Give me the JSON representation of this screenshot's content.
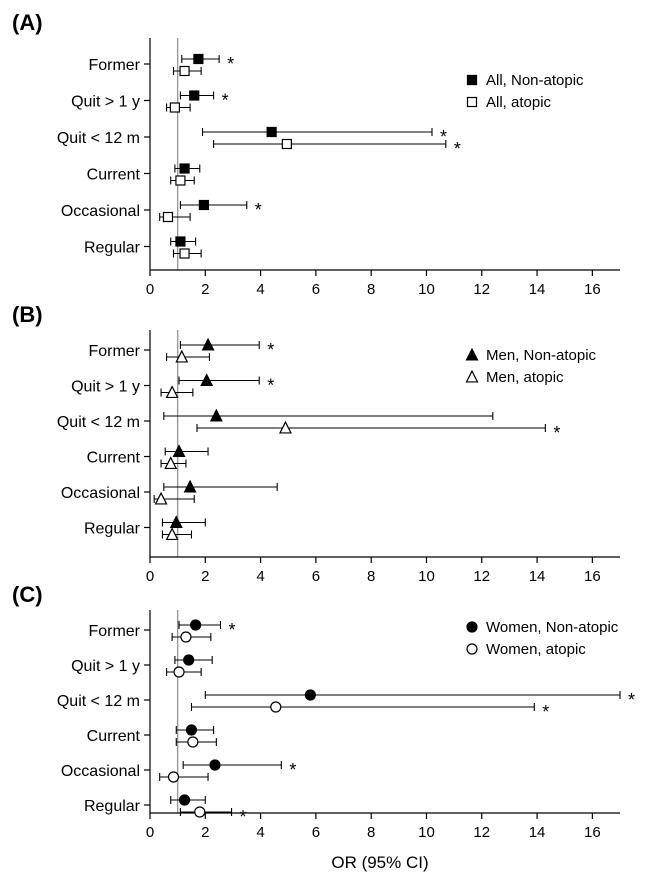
{
  "chart_data": [
    {
      "type": "forest",
      "panel": "(A)",
      "categories": [
        "Former",
        "Quit > 1 y",
        "Quit < 12 m",
        "Current",
        "Occasional",
        "Regular"
      ],
      "xlim": [
        0,
        17
      ],
      "xticks": [
        "0",
        "2",
        "4",
        "6",
        "8",
        "10",
        "12",
        "14",
        "16"
      ],
      "legend_position": "top-right",
      "series": [
        {
          "name": "All, Non-atopic",
          "marker": "square",
          "filled": true,
          "or": [
            1.75,
            1.6,
            4.4,
            1.25,
            1.95,
            1.1
          ],
          "lo": [
            1.15,
            1.1,
            1.9,
            0.9,
            1.1,
            0.75
          ],
          "hi": [
            2.5,
            2.3,
            10.2,
            1.8,
            3.5,
            1.65
          ],
          "significant": [
            true,
            true,
            true,
            false,
            true,
            false
          ]
        },
        {
          "name": "All, atopic",
          "marker": "square",
          "filled": false,
          "or": [
            1.25,
            0.9,
            4.95,
            1.1,
            0.65,
            1.25
          ],
          "lo": [
            0.85,
            0.6,
            2.3,
            0.75,
            0.35,
            0.85
          ],
          "hi": [
            1.85,
            1.45,
            10.7,
            1.6,
            1.45,
            1.85
          ],
          "significant": [
            false,
            false,
            true,
            false,
            false,
            false
          ]
        }
      ]
    },
    {
      "type": "forest",
      "panel": "(B)",
      "categories": [
        "Former",
        "Quit > 1 y",
        "Quit < 12 m",
        "Current",
        "Occasional",
        "Regular"
      ],
      "xlim": [
        0,
        17
      ],
      "xticks": [
        "0",
        "2",
        "4",
        "6",
        "8",
        "10",
        "12",
        "14",
        "16"
      ],
      "legend_position": "top-right",
      "series": [
        {
          "name": "Men, Non-atopic",
          "marker": "triangle",
          "filled": true,
          "or": [
            2.1,
            2.05,
            2.4,
            1.05,
            1.45,
            0.95
          ],
          "lo": [
            1.1,
            1.05,
            0.5,
            0.55,
            0.5,
            0.45
          ],
          "hi": [
            3.95,
            3.95,
            12.4,
            2.1,
            4.6,
            2.0
          ],
          "significant": [
            true,
            true,
            false,
            false,
            false,
            false
          ]
        },
        {
          "name": "Men, atopic",
          "marker": "triangle",
          "filled": false,
          "or": [
            1.15,
            0.8,
            4.9,
            0.75,
            0.4,
            0.8
          ],
          "lo": [
            0.6,
            0.4,
            1.7,
            0.4,
            0.15,
            0.45
          ],
          "hi": [
            2.15,
            1.55,
            14.3,
            1.3,
            1.6,
            1.5
          ],
          "significant": [
            false,
            false,
            true,
            false,
            false,
            false
          ]
        }
      ]
    },
    {
      "type": "forest",
      "panel": "(C)",
      "categories": [
        "Former",
        "Quit > 1 y",
        "Quit < 12 m",
        "Current",
        "Occasional",
        "Regular"
      ],
      "xlim": [
        0,
        17
      ],
      "xticks": [
        "0",
        "2",
        "4",
        "6",
        "8",
        "10",
        "12",
        "14",
        "16"
      ],
      "xlabel": "OR (95% CI)",
      "legend_position": "top-right",
      "series": [
        {
          "name": "Women, Non-atopic",
          "marker": "circle",
          "filled": true,
          "or": [
            1.65,
            1.4,
            5.8,
            1.5,
            2.35,
            1.25
          ],
          "lo": [
            1.05,
            0.9,
            2.0,
            0.95,
            1.2,
            0.75
          ],
          "hi": [
            2.55,
            2.25,
            17.0,
            2.3,
            4.75,
            2.0
          ],
          "significant": [
            true,
            false,
            true,
            false,
            true,
            false
          ]
        },
        {
          "name": "Women, atopic",
          "marker": "circle",
          "filled": false,
          "or": [
            1.3,
            1.05,
            4.55,
            1.55,
            0.85,
            1.8
          ],
          "lo": [
            0.8,
            0.6,
            1.5,
            0.95,
            0.35,
            1.1
          ],
          "hi": [
            2.2,
            1.85,
            13.9,
            2.4,
            2.1,
            2.95
          ],
          "significant": [
            false,
            false,
            true,
            false,
            false,
            true
          ]
        }
      ]
    }
  ],
  "significance_marker": "*"
}
